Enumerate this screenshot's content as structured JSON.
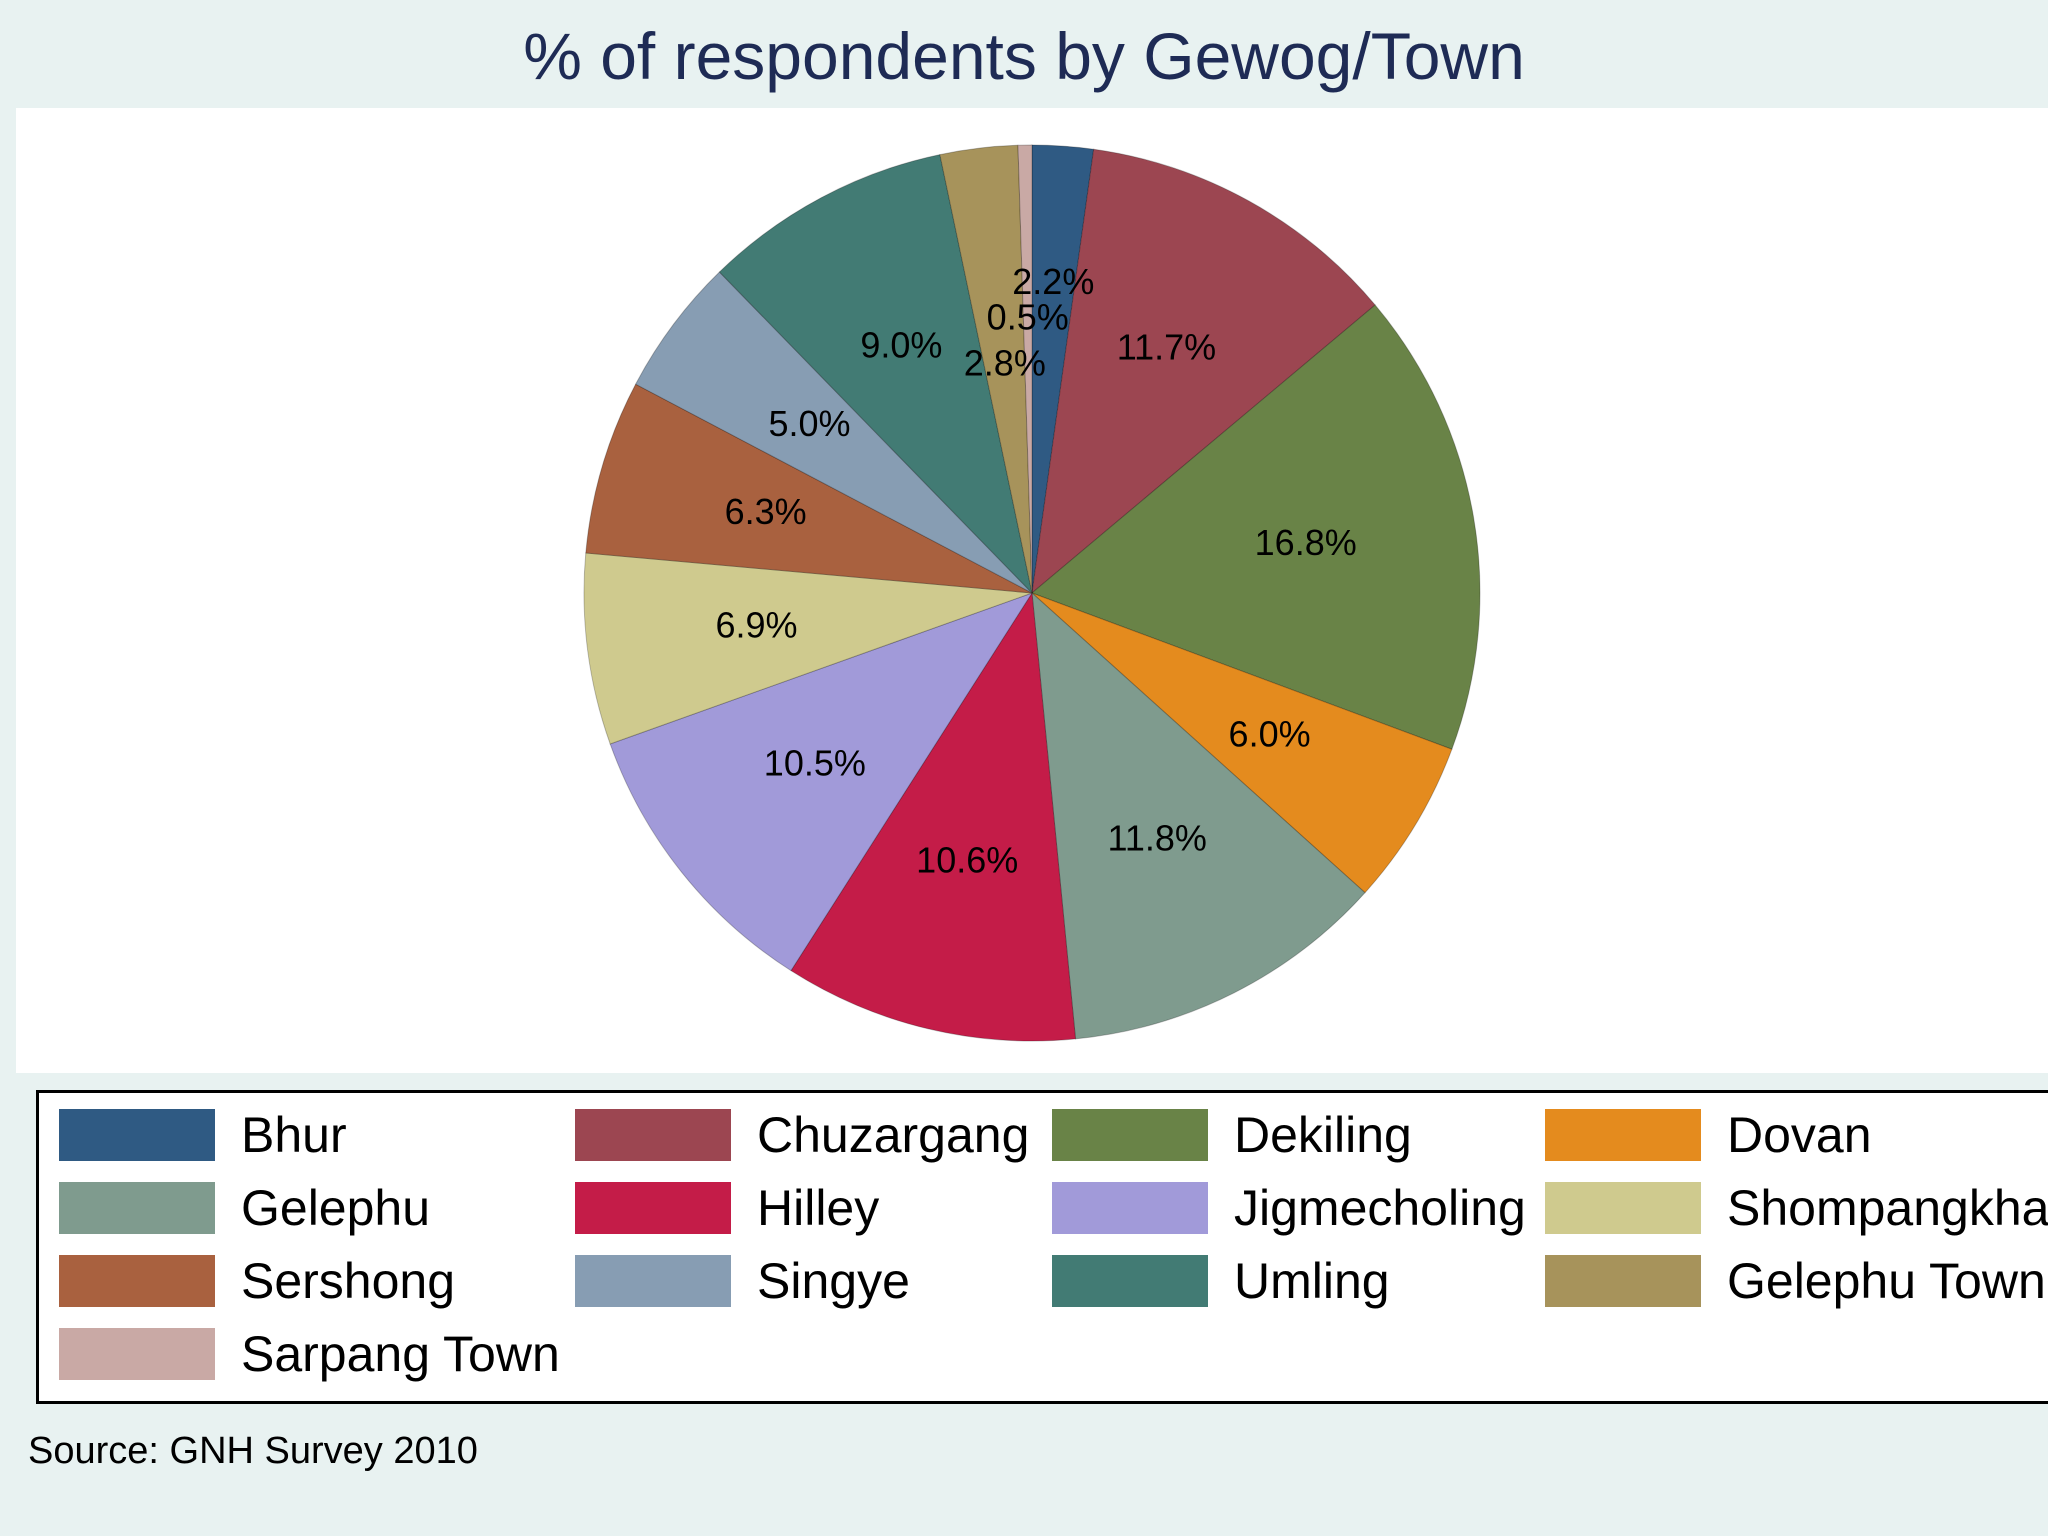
{
  "chart_data": {
    "type": "pie",
    "title": "% of respondents by Gewog/Town",
    "source": "Source: GNH Survey 2010",
    "legend_position": "bottom",
    "slices": [
      {
        "name": "Bhur",
        "value": 2.2,
        "label": "2.2%",
        "color": "#2f5a83"
      },
      {
        "name": "Chuzargang",
        "value": 11.7,
        "label": "11.7%",
        "color": "#9c4651"
      },
      {
        "name": "Dekiling",
        "value": 16.8,
        "label": "16.8%",
        "color": "#698347"
      },
      {
        "name": "Dovan",
        "value": 6.0,
        "label": "6.0%",
        "color": "#e48b1e"
      },
      {
        "name": "Gelephu",
        "value": 11.8,
        "label": "11.8%",
        "color": "#7f9b8e"
      },
      {
        "name": "Hilley",
        "value": 10.6,
        "label": "10.6%",
        "color": "#c41c48"
      },
      {
        "name": "Jigmecholing",
        "value": 10.5,
        "label": "10.5%",
        "color": "#a19ad9"
      },
      {
        "name": "Shompangkha",
        "value": 6.9,
        "label": "6.9%",
        "color": "#cfca8e"
      },
      {
        "name": "Sershong",
        "value": 6.3,
        "label": "6.3%",
        "color": "#a9613f"
      },
      {
        "name": "Singye",
        "value": 5.0,
        "label": "5.0%",
        "color": "#879db3"
      },
      {
        "name": "Umling",
        "value": 9.0,
        "label": "9.0%",
        "color": "#427b74"
      },
      {
        "name": "Gelephu Town",
        "value": 2.8,
        "label": "2.8%",
        "color": "#a7935b"
      },
      {
        "name": "Sarpang Town",
        "value": 0.5,
        "label": "0.5%",
        "color": "#c9a9a5"
      }
    ]
  }
}
